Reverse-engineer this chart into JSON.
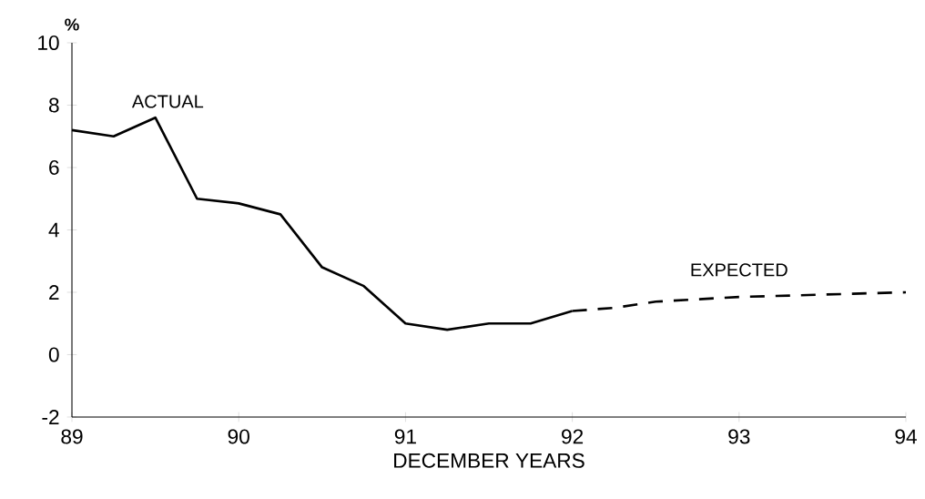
{
  "chart_data": {
    "type": "line",
    "ylabel": "%",
    "xlabel": "DECEMBER YEARS",
    "xlim": [
      89,
      94
    ],
    "xticks": [
      89,
      90,
      91,
      92,
      93,
      94
    ],
    "ylim": [
      -2,
      10
    ],
    "yticks": [
      -2,
      0,
      2,
      4,
      6,
      8,
      10
    ],
    "grid": false,
    "legend": false,
    "series": [
      {
        "name": "ACTUAL",
        "color": "#000000",
        "line_style": "solid",
        "x": [
          89,
          89.25,
          89.5,
          89.75,
          90,
          90.25,
          90.5,
          90.75,
          91,
          91.25,
          91.5,
          91.75,
          92
        ],
        "values": [
          7.2,
          7.0,
          7.6,
          5.0,
          4.85,
          4.5,
          2.8,
          2.2,
          1.0,
          0.8,
          1.0,
          1.0,
          1.4
        ]
      },
      {
        "name": "EXPECTED",
        "color": "#000000",
        "line_style": "dashed",
        "x": [
          92,
          92.25,
          92.5,
          93,
          94
        ],
        "values": [
          1.4,
          1.5,
          1.7,
          1.85,
          2.0
        ]
      }
    ]
  }
}
